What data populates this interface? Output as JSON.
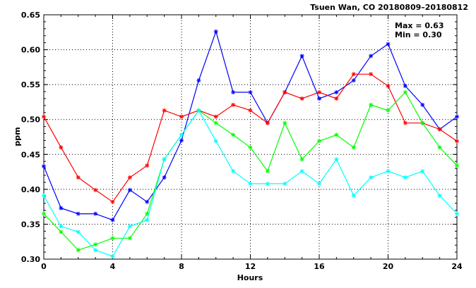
{
  "chart_data": {
    "type": "line",
    "title": "Tsuen Wan, CO 20180809–20180812",
    "xlabel": "Hours",
    "ylabel": "ppm",
    "xlim": [
      0,
      24
    ],
    "ylim": [
      0.3,
      0.65
    ],
    "xticks": [
      0,
      4,
      8,
      12,
      16,
      20,
      24
    ],
    "yticks": [
      0.3,
      0.35,
      0.4,
      0.45,
      0.5,
      0.55,
      0.6,
      0.65
    ],
    "grid": true,
    "stats": {
      "max": "Max = 0.63",
      "min": "Min = 0.30"
    },
    "x": [
      0,
      1,
      2,
      3,
      4,
      5,
      6,
      7,
      8,
      9,
      10,
      11,
      12,
      13,
      14,
      15,
      16,
      17,
      18,
      19,
      20,
      21,
      22,
      23,
      24
    ],
    "series": [
      {
        "color": "#0000ff",
        "values": [
          0.433,
          0.373,
          0.365,
          0.365,
          0.356,
          0.399,
          0.382,
          0.417,
          0.47,
          0.556,
          0.626,
          0.539,
          0.539,
          0.495,
          0.539,
          0.591,
          0.53,
          0.539,
          0.556,
          0.591,
          0.608,
          0.548,
          0.521,
          0.486,
          0.504
        ]
      },
      {
        "color": "#ff0000",
        "values": [
          0.504,
          0.46,
          0.417,
          0.399,
          0.382,
          0.417,
          0.434,
          0.513,
          0.504,
          0.513,
          0.504,
          0.521,
          0.513,
          0.495,
          0.539,
          0.53,
          0.539,
          0.53,
          0.565,
          0.565,
          0.548,
          0.495,
          0.495,
          0.486,
          0.469
        ]
      },
      {
        "color": "#00ff00",
        "values": [
          0.365,
          0.339,
          0.313,
          0.321,
          0.33,
          0.33,
          0.365,
          0.443,
          0.478,
          0.513,
          0.495,
          0.478,
          0.46,
          0.426,
          0.495,
          0.443,
          0.469,
          0.478,
          0.46,
          0.521,
          0.513,
          0.539,
          0.495,
          0.46,
          0.434
        ]
      },
      {
        "color": "#00ffff",
        "values": [
          0.391,
          0.347,
          0.339,
          0.313,
          0.304,
          0.347,
          0.356,
          0.443,
          0.478,
          0.513,
          0.469,
          0.426,
          0.408,
          0.408,
          0.408,
          0.426,
          0.408,
          0.443,
          0.391,
          0.417,
          0.426,
          0.417,
          0.426,
          0.391,
          0.365
        ]
      }
    ]
  }
}
